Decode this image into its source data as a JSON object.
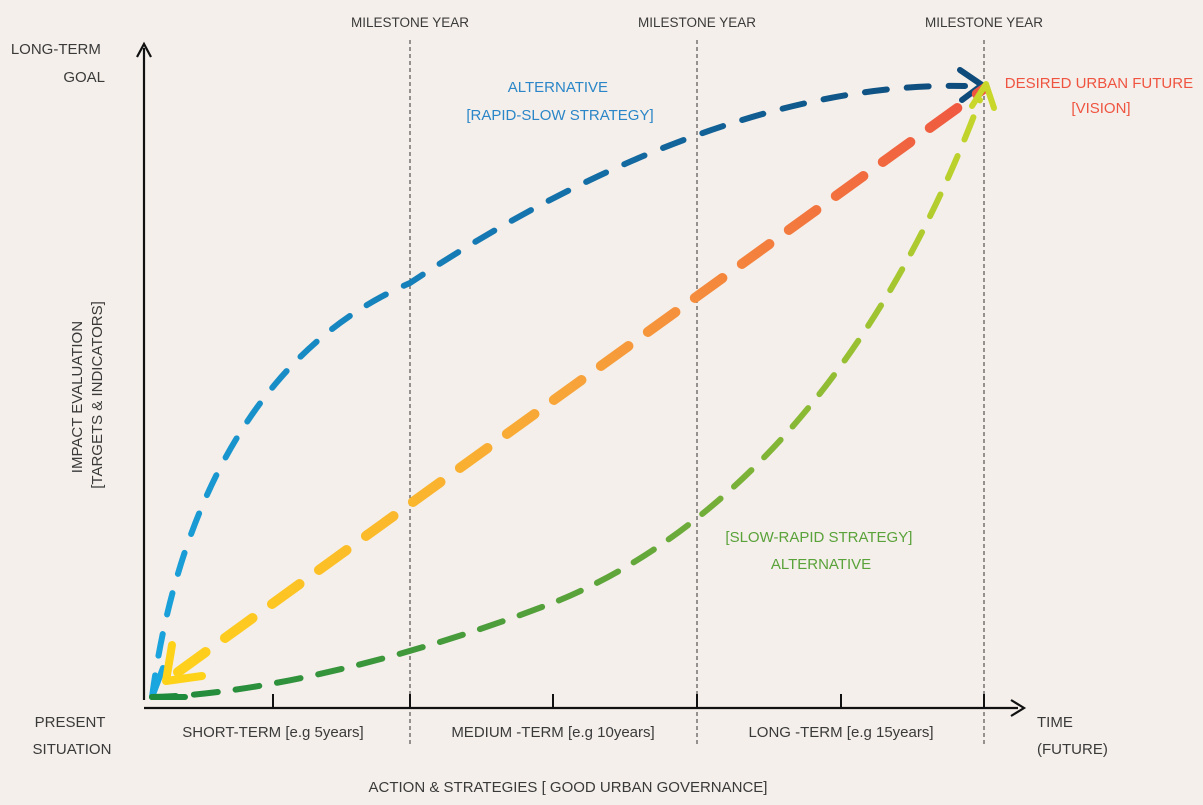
{
  "axes": {
    "y_top_label": [
      "LONG-TERM",
      "GOAL"
    ],
    "y_axis_title": [
      "IMPACT EVALUATION",
      "[TARGETS & INDICATORS]"
    ],
    "origin_label": [
      "PRESENT",
      "SITUATION"
    ],
    "x_end_label": [
      "TIME",
      "(FUTURE)"
    ],
    "x_axis_title": "ACTION & STRATEGIES [ GOOD URBAN GOVERNANCE]"
  },
  "milestones": [
    "MILESTONE YEAR",
    "MILESTONE YEAR",
    "MILESTONE YEAR"
  ],
  "periods": [
    "SHORT-TERM [e.g 5years]",
    "MEDIUM -TERM [e.g 10years]",
    "LONG -TERM [e.g 15years]"
  ],
  "annotations": {
    "rapid_slow": [
      "ALTERNATIVE",
      "[RAPID-SLOW STRATEGY]"
    ],
    "slow_rapid": [
      "[SLOW-RAPID STRATEGY]",
      "ALTERNATIVE"
    ],
    "vision": [
      "DESIRED URBAN FUTURE",
      "[VISION]"
    ]
  },
  "colors": {
    "background": "#f4efea",
    "axis": "#111111",
    "rapid_slow_start": "#1aa6df",
    "rapid_slow_end": "#0e4a7a",
    "direct_start": "#ffd21a",
    "direct_mid": "#f7a33a",
    "direct_end": "#ef5441",
    "slow_rapid_start": "#1e8a3c",
    "slow_rapid_end": "#c8d72a",
    "rapid_slow_text": "#2a86c8",
    "slow_rapid_text": "#5aa23a",
    "vision_text": "#ef5441"
  }
}
